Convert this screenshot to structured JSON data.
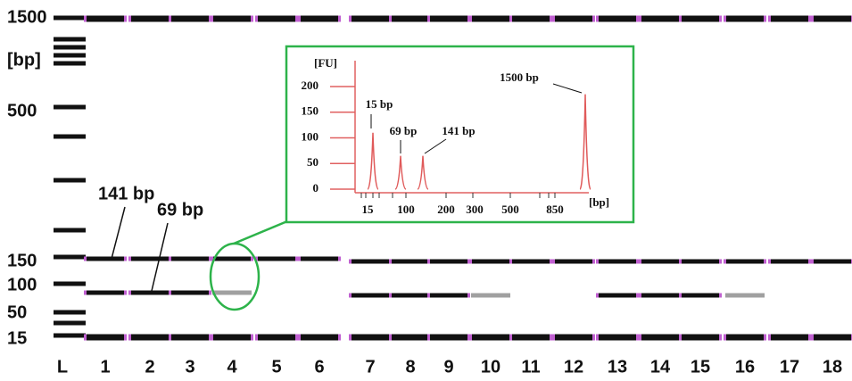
{
  "gel": {
    "size_labels": [
      "1500",
      "[bp]",
      "500",
      "150",
      "100",
      "50",
      "15"
    ],
    "lanes": [
      "L",
      "1",
      "2",
      "3",
      "4",
      "5",
      "6",
      "7",
      "8",
      "9",
      "10",
      "11",
      "12",
      "13",
      "14",
      "15",
      "16",
      "17",
      "18"
    ],
    "annotations": [
      "141 bp",
      "69 bp"
    ]
  },
  "inset": {
    "y_unit": "[FU]",
    "x_unit": "[bp]",
    "ylim": [
      0,
      200
    ],
    "yticks": [
      0,
      50,
      100,
      150,
      200
    ],
    "xtick_labels": [
      "15",
      "100",
      "200",
      "300",
      "500",
      "850"
    ],
    "peaks": [
      {
        "label": "15 bp",
        "value": 110
      },
      {
        "label": "69 bp",
        "value": 65
      },
      {
        "label": "141 bp",
        "value": 65
      },
      {
        "label": "1500 bp",
        "value": 185
      }
    ]
  }
}
